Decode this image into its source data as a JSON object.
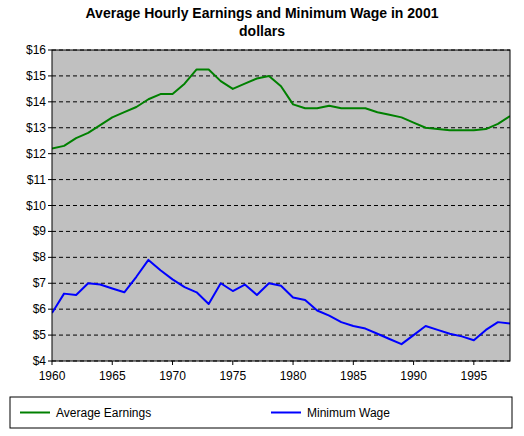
{
  "chart_data": {
    "type": "line",
    "title": "Average Hourly Earnings and Minimum Wage in 2001 dollars",
    "x": [
      1960,
      1961,
      1962,
      1963,
      1964,
      1965,
      1966,
      1967,
      1968,
      1969,
      1970,
      1971,
      1972,
      1973,
      1974,
      1975,
      1976,
      1977,
      1978,
      1979,
      1980,
      1981,
      1982,
      1983,
      1984,
      1985,
      1986,
      1987,
      1988,
      1989,
      1990,
      1991,
      1992,
      1993,
      1994,
      1995,
      1996,
      1997,
      1998
    ],
    "series": [
      {
        "name": "Average Earnings",
        "color": "#008000",
        "values": [
          12.2,
          12.3,
          12.6,
          12.8,
          13.1,
          13.4,
          13.6,
          13.8,
          14.1,
          14.3,
          14.3,
          14.7,
          15.25,
          15.25,
          14.8,
          14.5,
          14.7,
          14.9,
          15.0,
          14.6,
          13.9,
          13.75,
          13.75,
          13.85,
          13.75,
          13.75,
          13.75,
          13.6,
          13.5,
          13.4,
          13.2,
          13.0,
          12.95,
          12.9,
          12.9,
          12.9,
          12.95,
          13.15,
          13.45
        ]
      },
      {
        "name": "Minimum Wage",
        "color": "#0000ff",
        "values": [
          5.85,
          6.6,
          6.55,
          7.0,
          6.95,
          6.8,
          6.65,
          7.25,
          7.9,
          7.5,
          7.15,
          6.85,
          6.65,
          6.2,
          7.0,
          6.7,
          6.95,
          6.55,
          7.0,
          6.9,
          6.45,
          6.35,
          5.95,
          5.75,
          5.5,
          5.35,
          5.25,
          5.05,
          4.85,
          4.65,
          5.0,
          5.35,
          5.2,
          5.05,
          4.95,
          4.8,
          5.2,
          5.5,
          5.45
        ]
      }
    ],
    "xlim": [
      1960,
      1998
    ],
    "xticks": [
      1960,
      1965,
      1970,
      1975,
      1980,
      1985,
      1990,
      1995
    ],
    "ylim": [
      4,
      16
    ],
    "yticks": [
      {
        "value": 4,
        "label": "$4"
      },
      {
        "value": 5,
        "label": "$5"
      },
      {
        "value": 6,
        "label": "$6"
      },
      {
        "value": 7,
        "label": "$7"
      },
      {
        "value": 8,
        "label": "$8"
      },
      {
        "value": 9,
        "label": "$9"
      },
      {
        "value": 10,
        "label": "$10"
      },
      {
        "value": 11,
        "label": "$11"
      },
      {
        "value": 12,
        "label": "$12"
      },
      {
        "value": 13,
        "label": "$13"
      },
      {
        "value": 14,
        "label": "$14"
      },
      {
        "value": 15,
        "label": "$15"
      },
      {
        "value": 16,
        "label": "$16"
      }
    ],
    "grid": true,
    "legend": "bottom"
  }
}
